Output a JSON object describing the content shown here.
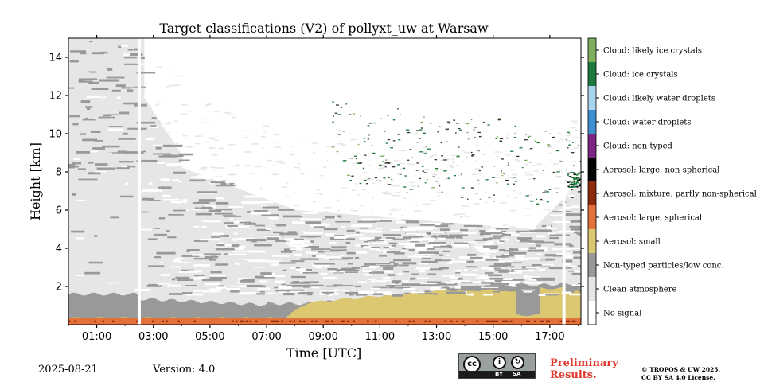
{
  "chart_data": {
    "type": "heatmap",
    "title": "Target classifications (V2) of pollyxt_uw at Warsaw",
    "xlabel": "Time [UTC]",
    "ylabel": "Height [km]",
    "xlim_hours": [
      0,
      18.1
    ],
    "ylim_km": [
      0,
      15
    ],
    "x_ticks": [
      {
        "value": 1,
        "label": "01:00"
      },
      {
        "value": 3,
        "label": "03:00"
      },
      {
        "value": 5,
        "label": "05:00"
      },
      {
        "value": 7,
        "label": "07:00"
      },
      {
        "value": 9,
        "label": "09:00"
      },
      {
        "value": 11,
        "label": "11:00"
      },
      {
        "value": 13,
        "label": "13:00"
      },
      {
        "value": 15,
        "label": "15:00"
      },
      {
        "value": 17,
        "label": "17:00"
      }
    ],
    "y_ticks": [
      {
        "value": 2,
        "label": "2"
      },
      {
        "value": 4,
        "label": "4"
      },
      {
        "value": 6,
        "label": "6"
      },
      {
        "value": 8,
        "label": "8"
      },
      {
        "value": 10,
        "label": "10"
      },
      {
        "value": 12,
        "label": "12"
      },
      {
        "value": 14,
        "label": "14"
      }
    ],
    "data_gaps_hours": [
      2.5,
      17.5
    ],
    "classes": [
      {
        "label": "Cloud: likely ice crystals",
        "color": "#7fae5c"
      },
      {
        "label": "Cloud: ice crystals",
        "color": "#1d7a3a"
      },
      {
        "label": "Cloud: likely water droplets",
        "color": "#a9d4f0"
      },
      {
        "label": "Cloud: water droplets",
        "color": "#3d8fcd"
      },
      {
        "label": "Cloud: non-typed",
        "color": "#7d2585"
      },
      {
        "label": "Aerosol: large, non-spherical",
        "color": "#050505"
      },
      {
        "label": "Aerosol: mixture, partly non-spherical",
        "color": "#8c2a0e"
      },
      {
        "label": "Aerosol: large, spherical",
        "color": "#e2723a"
      },
      {
        "label": "Aerosol: small",
        "color": "#dcc870"
      },
      {
        "label": "Non-typed particles/low conc.",
        "color": "#999999"
      },
      {
        "label": "Clean atmosphere",
        "color": "#e6e6e6"
      },
      {
        "label": "No signal",
        "color": "#ffffff"
      }
    ]
  },
  "footer": {
    "date": "2025-08-21",
    "version": "Version: 4.0",
    "preliminary_line1": "Preliminary",
    "preliminary_line2": "Results.",
    "copyright_line1": "© TROPOS & UW 2025.",
    "copyright_line2": "CC BY SA 4.0 License.",
    "license_badge": {
      "cc": "cc",
      "by": "BY",
      "sa": "SA"
    }
  }
}
